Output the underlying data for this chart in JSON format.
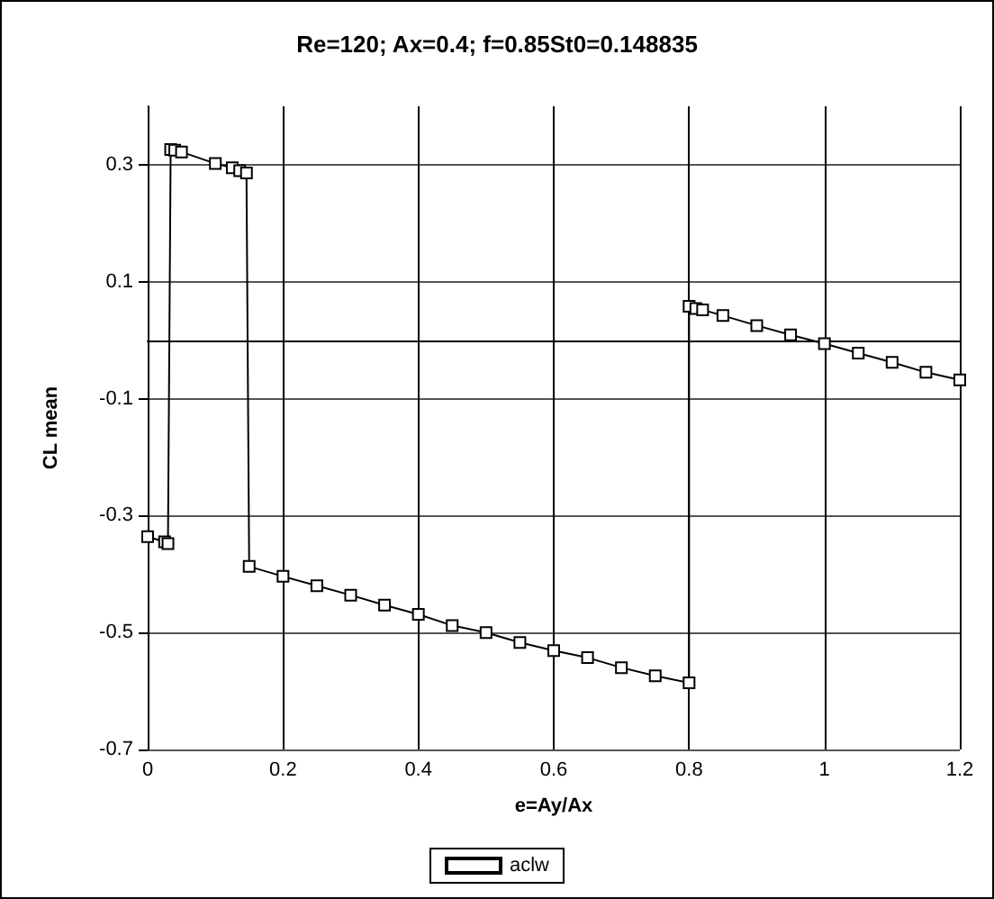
{
  "chart_data": {
    "type": "line",
    "title": "Re=120; Ax=0.4; f=0.85St0=0.148835",
    "xlabel": "e=Ay/Ax",
    "ylabel": "CL mean",
    "series": [
      {
        "name": "aclw",
        "color": "#000000",
        "x": [
          0,
          0.025,
          0.03,
          0.034,
          0.04,
          0.05,
          0.1,
          0.125,
          0.136,
          0.146,
          0.15,
          0.2,
          0.25,
          0.3,
          0.35,
          0.4,
          0.45,
          0.5,
          0.55,
          0.6,
          0.65,
          0.7,
          0.75,
          0.8,
          0.8,
          0.81,
          0.82,
          0.85,
          0.9,
          0.95,
          1,
          1.05,
          1.1,
          1.15,
          1.2
        ],
        "values": [
          -0.336,
          -0.345,
          -0.348,
          0.326,
          0.325,
          0.322,
          0.302,
          0.295,
          0.29,
          0.286,
          -0.387,
          -0.404,
          -0.42,
          -0.436,
          -0.453,
          -0.469,
          -0.488,
          -0.5,
          -0.517,
          -0.531,
          -0.543,
          -0.56,
          -0.574,
          -0.586,
          0.058,
          0.054,
          0.052,
          0.042,
          0.025,
          0.009,
          -0.006,
          -0.022,
          -0.038,
          -0.055,
          -0.068
        ]
      }
    ],
    "xlim": [
      0,
      1.2
    ],
    "xticks": [
      0,
      0.2,
      0.4,
      0.6,
      0.8,
      1,
      1.2
    ],
    "ylim": [
      -0.7,
      0.4
    ],
    "yticks": [
      -0.7,
      -0.5,
      -0.3,
      -0.1,
      0.1,
      0.3
    ],
    "grid": true,
    "legend": "bottom",
    "marker": "square",
    "line_style": "solid"
  }
}
